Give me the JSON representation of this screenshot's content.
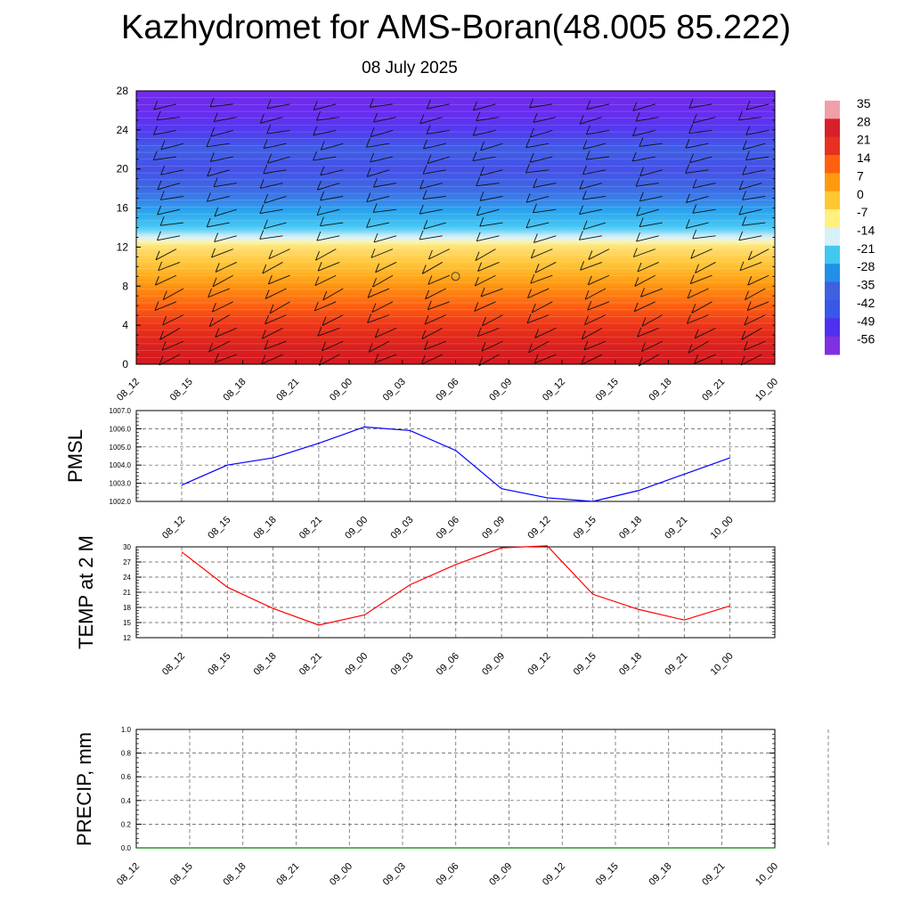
{
  "title": "Kazhydromet for AMS-Boran(48.005 85.222)",
  "subtitle": "08 July 2025",
  "chart_data": [
    {
      "type": "heatmap",
      "title": "",
      "x_ticks": [
        "08_12",
        "08_15",
        "08_18",
        "08_21",
        "09_00",
        "09_03",
        "09_06",
        "09_09",
        "09_12",
        "09_15",
        "09_18",
        "09_21",
        "10_00"
      ],
      "y_ticks": [
        0,
        4,
        8,
        12,
        16,
        20,
        24,
        28
      ],
      "ylim": [
        0,
        28
      ],
      "colorbar_labels": [
        "35",
        "28",
        "21",
        "14",
        "7",
        "0",
        "-7",
        "-14",
        "-21",
        "-28",
        "-35",
        "-42",
        "-49",
        "-56"
      ],
      "colorbar_colors": [
        "#f0a0a8",
        "#d8202a",
        "#e83020",
        "#ff6010",
        "#ff9a10",
        "#ffc830",
        "#fff080",
        "#d8f0f8",
        "#40c8f0",
        "#2090e8",
        "#4060e0",
        "#3858e8",
        "#5030f0",
        "#8030e0"
      ],
      "layer_temperature_by_level": [
        {
          "level": 0,
          "value": 28
        },
        {
          "level": 2,
          "value": 26
        },
        {
          "level": 4,
          "value": 22
        },
        {
          "level": 6,
          "value": 15
        },
        {
          "level": 8,
          "value": 8
        },
        {
          "level": 10,
          "value": 0
        },
        {
          "level": 12,
          "value": -7
        },
        {
          "level": 13,
          "value": -14
        },
        {
          "level": 14,
          "value": -21
        },
        {
          "level": 16,
          "value": -30
        },
        {
          "level": 18,
          "value": -40
        },
        {
          "level": 20,
          "value": -45
        },
        {
          "level": 22,
          "value": -42
        },
        {
          "level": 24,
          "value": -50
        },
        {
          "level": 26,
          "value": -56
        },
        {
          "level": 28,
          "value": -58
        }
      ],
      "calm_marker": {
        "x": "09_06",
        "level": 9
      }
    },
    {
      "type": "line",
      "ylabel": "PMSL",
      "categories": [
        "08_12",
        "08_15",
        "08_18",
        "08_21",
        "09_00",
        "09_03",
        "09_06",
        "09_09",
        "09_12",
        "09_15",
        "09_18",
        "09_21",
        "10_00"
      ],
      "y_ticks": [
        "1002.0",
        "1003.0",
        "1004.0",
        "1005.0",
        "1006.0",
        "1007.0"
      ],
      "ylim": [
        1002,
        1007
      ],
      "grid": true,
      "series": [
        {
          "color": "#0000ff",
          "values": [
            1002.9,
            1004.0,
            1004.4,
            1005.2,
            1006.1,
            1005.9,
            1004.8,
            1002.7,
            1002.2,
            1002.0,
            1002.6,
            1003.5,
            1004.4
          ]
        }
      ]
    },
    {
      "type": "line",
      "ylabel": "TEMP at 2 M",
      "categories": [
        "08_12",
        "08_15",
        "08_18",
        "08_21",
        "09_00",
        "09_03",
        "09_06",
        "09_09",
        "09_12",
        "09_15",
        "09_18",
        "09_21",
        "10_00"
      ],
      "y_ticks": [
        "12",
        "15",
        "18",
        "21",
        "24",
        "27",
        "30"
      ],
      "ylim": [
        12,
        30
      ],
      "grid": true,
      "series": [
        {
          "color": "#ff0000",
          "values": [
            29.0,
            22.0,
            17.8,
            14.5,
            16.5,
            22.5,
            26.5,
            29.8,
            30.2,
            20.6,
            17.6,
            15.5,
            18.3
          ]
        }
      ]
    },
    {
      "type": "line",
      "ylabel": "PRECIP, mm",
      "categories": [
        "08_12",
        "08_15",
        "08_18",
        "08_21",
        "09_00",
        "09_03",
        "09_06",
        "09_09",
        "09_12",
        "09_15",
        "09_18",
        "09_21",
        "10_00"
      ],
      "y_ticks": [
        "0.0",
        "0.2",
        "0.4",
        "0.6",
        "0.8",
        "1.0"
      ],
      "ylim": [
        0,
        1
      ],
      "grid": true,
      "series": [
        {
          "color": "#008000",
          "values": [
            0,
            0,
            0,
            0,
            0,
            0,
            0,
            0,
            0,
            0,
            0,
            0,
            0
          ]
        }
      ]
    }
  ]
}
